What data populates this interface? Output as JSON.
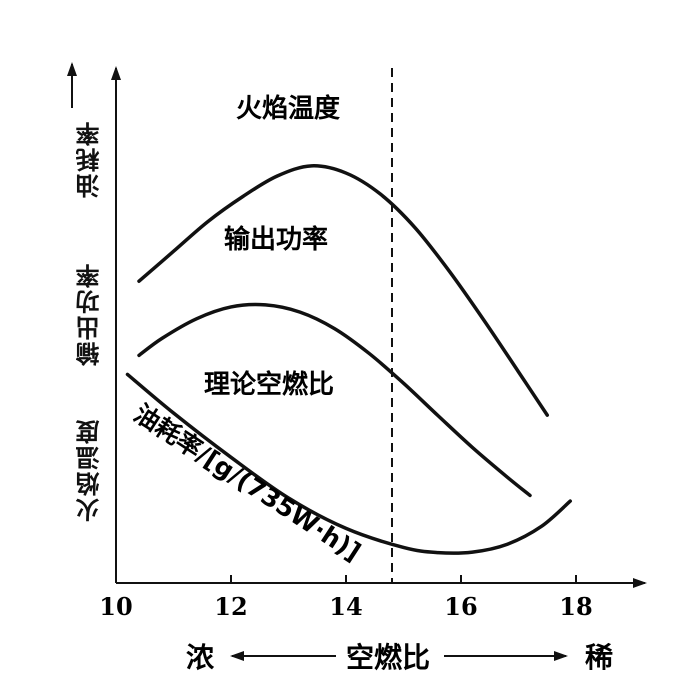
{
  "chart_data": {
    "type": "line",
    "x_range": [
      10,
      19.2
    ],
    "y_range": [
      0,
      100
    ],
    "xticks": [
      10,
      12,
      14,
      16,
      18
    ],
    "xtick_labels": [
      "10",
      "12",
      "14",
      "16",
      "18"
    ],
    "stoich_ratio": 14.8,
    "stoich_label": "理论空燃比",
    "y_axis_labels": [
      "火焰温度",
      "输出功率",
      "油耗率"
    ],
    "x_axis": {
      "rich": "浓",
      "label": "空燃比",
      "lean": "稀"
    },
    "series": [
      {
        "name": "火焰温度",
        "x": [
          10.4,
          11.0,
          11.6,
          12.2,
          12.8,
          13.4,
          14.0,
          14.6,
          15.2,
          15.8,
          16.4,
          17.0,
          17.5
        ],
        "y": [
          58.6,
          64.4,
          70.2,
          75.0,
          79.0,
          81.0,
          79.6,
          75.5,
          69.0,
          60.5,
          51.0,
          41.0,
          32.6
        ]
      },
      {
        "name": "输出功率",
        "x": [
          10.4,
          10.8,
          11.4,
          12.0,
          12.6,
          13.2,
          13.8,
          14.4,
          15.0,
          15.6,
          16.2,
          16.8,
          17.2
        ],
        "y": [
          44.2,
          47.5,
          51.3,
          53.6,
          54.0,
          52.6,
          49.4,
          44.6,
          38.8,
          32.5,
          26.3,
          20.6,
          17.0
        ]
      },
      {
        "name": "油耗率/[g/(735W·h)]",
        "x": [
          10.2,
          11.0,
          12.0,
          13.0,
          14.0,
          15.0,
          15.6,
          16.2,
          16.8,
          17.4,
          17.9
        ],
        "y": [
          40.5,
          33.0,
          24.4,
          16.5,
          10.6,
          6.9,
          5.9,
          6.0,
          7.5,
          11.0,
          15.9
        ]
      }
    ]
  }
}
